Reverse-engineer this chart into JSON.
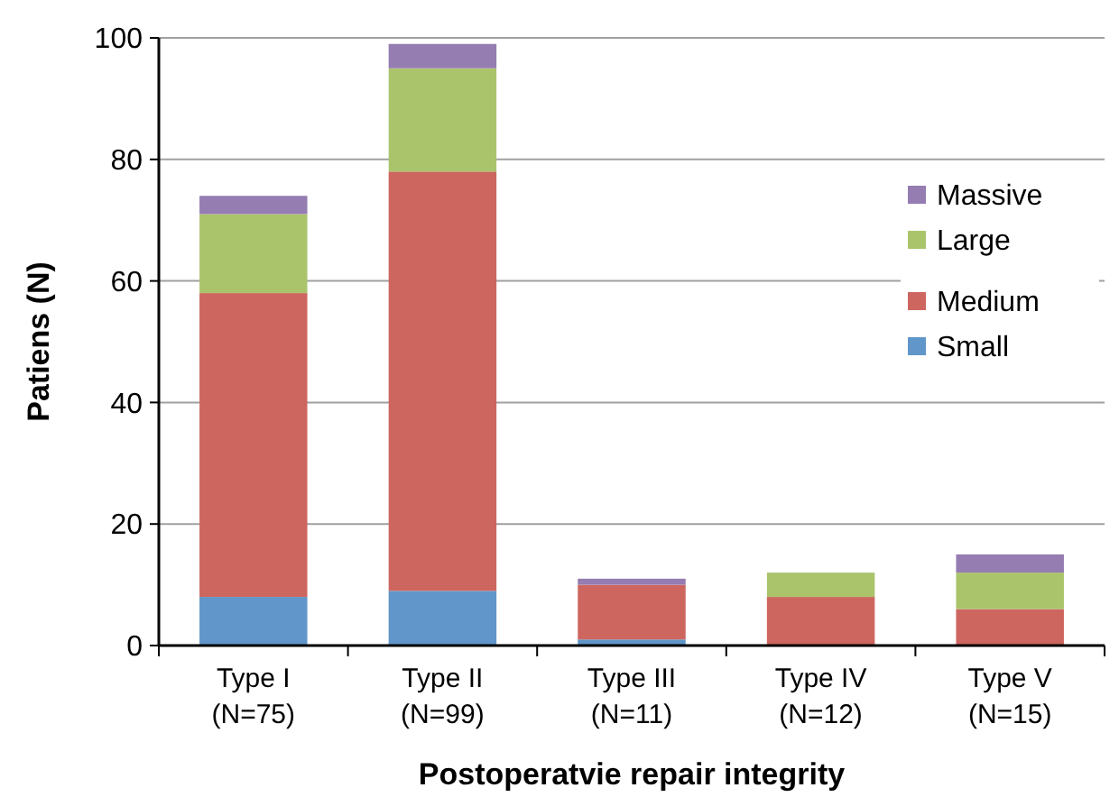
{
  "chart_data": {
    "type": "bar",
    "stacked": true,
    "xlabel": "Postoperatvie repair integrity",
    "ylabel": "Patiens (N)",
    "categories": [
      "Type I\n(N=75)",
      "Type II\n(N=99)",
      "Type III\n(N=11)",
      "Type IV\n(N=12)",
      "Type V\n(N=15)"
    ],
    "series": [
      {
        "name": "Small",
        "color": "#6096c9",
        "values": [
          8,
          9,
          1,
          0,
          0
        ]
      },
      {
        "name": "Medium",
        "color": "#cd665f",
        "values": [
          50,
          69,
          9,
          8,
          6
        ]
      },
      {
        "name": "Large",
        "color": "#aac46c",
        "values": [
          13,
          17,
          0,
          4,
          6
        ]
      },
      {
        "name": "Massive",
        "color": "#957cb1",
        "values": [
          3,
          4,
          1,
          0,
          3
        ]
      }
    ],
    "ylim": [
      0,
      100
    ],
    "yticks": [
      0,
      20,
      40,
      60,
      80,
      100
    ],
    "grid": "y",
    "legend": "right"
  }
}
